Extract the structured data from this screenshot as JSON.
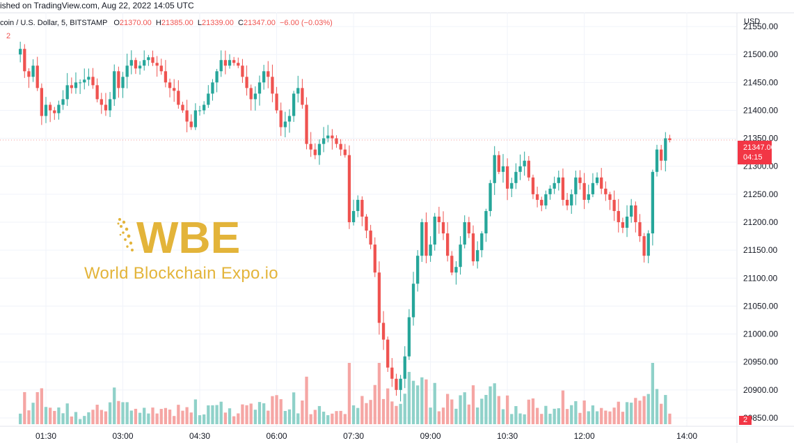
{
  "header": {
    "published": "ished on TradingView.com, Aug 22, 2022 14:05 UTC"
  },
  "legend": {
    "symbol": "coin / U.S. Dollar, 5, BITSTAMP",
    "open_label": "O",
    "open": "21370.00",
    "high_label": "H",
    "high": "21385.00",
    "low_label": "L",
    "low": "21339.00",
    "close_label": "C",
    "close": "21347.00",
    "change": "−6.00 (−0.03%)",
    "volume_indicator": "2"
  },
  "price_tag": {
    "price": "21347.00",
    "countdown": "04:15"
  },
  "volume_tag": "2",
  "currency": "USD",
  "watermark": {
    "logo_text": "WBE",
    "tagline": "World Blockchain Expo.io"
  },
  "colors": {
    "up": "#26a69a",
    "down": "#ef5350",
    "up_vol": "#8fd1c9",
    "down_vol": "#f5a6a4",
    "grid": "#f0f3fa",
    "gold": "#e3b43a"
  },
  "chart_data": {
    "type": "candlestick",
    "symbol": "coin / U.S. Dollar, 5, BITSTAMP",
    "y_ticks": [
      20850,
      20900,
      20950,
      21000,
      21050,
      21100,
      21150,
      21200,
      21250,
      21300,
      21350,
      21400,
      21450,
      21500,
      21550
    ],
    "y_tick_labels": [
      "20850.00",
      "20900.00",
      "20950.00",
      "21000.00",
      "21050.00",
      "21100.00",
      "21150.00",
      "21200.00",
      "21250.00",
      "21300.00",
      "21350.00",
      "21400.00",
      "21450.00",
      "21500.00",
      "21550.00"
    ],
    "ylim": [
      20835,
      21575
    ],
    "x_ticks": [
      "01:30",
      "03:00",
      "04:30",
      "06:00",
      "07:30",
      "09:00",
      "10:30",
      "12:00",
      "14:00"
    ],
    "x_tick_minutes": [
      90,
      180,
      270,
      360,
      450,
      540,
      630,
      720,
      840
    ],
    "x_start_minute": 60,
    "bar_minutes": 5,
    "last_price": 21347,
    "closes": [
      21510,
      21470,
      21460,
      21480,
      21440,
      21390,
      21410,
      21400,
      21395,
      21410,
      21420,
      21445,
      21440,
      21450,
      21450,
      21455,
      21460,
      21445,
      21420,
      21410,
      21400,
      21420,
      21470,
      21440,
      21460,
      21480,
      21490,
      21475,
      21480,
      21490,
      21495,
      21485,
      21480,
      21470,
      21450,
      21440,
      21435,
      21410,
      21400,
      21380,
      21370,
      21400,
      21400,
      21410,
      21430,
      21450,
      21470,
      21490,
      21480,
      21490,
      21485,
      21480,
      21460,
      21440,
      21420,
      21430,
      21450,
      21470,
      21460,
      21430,
      21400,
      21370,
      21380,
      21390,
      21430,
      21440,
      21410,
      21340,
      21330,
      21320,
      21340,
      21350,
      21355,
      21350,
      21340,
      21330,
      21320,
      21200,
      21220,
      21240,
      21210,
      21185,
      21160,
      21110,
      21020,
      20990,
      20940,
      20920,
      20900,
      20920,
      20960,
      21030,
      21090,
      21140,
      21200,
      21140,
      21160,
      21210,
      21200,
      21180,
      21140,
      21110,
      21120,
      21160,
      21200,
      21180,
      21130,
      21150,
      21180,
      21220,
      21270,
      21320,
      21290,
      21300,
      21260,
      21270,
      21290,
      21300,
      21310,
      21280,
      21250,
      21240,
      21230,
      21250,
      21260,
      21270,
      21280,
      21240,
      21230,
      21250,
      21280,
      21270,
      21240,
      21250,
      21270,
      21280,
      21260,
      21250,
      21240,
      21220,
      21200,
      21190,
      21210,
      21230,
      21200,
      21175,
      21140,
      21180,
      21290,
      21330,
      21310,
      21350,
      21347
    ]
  }
}
